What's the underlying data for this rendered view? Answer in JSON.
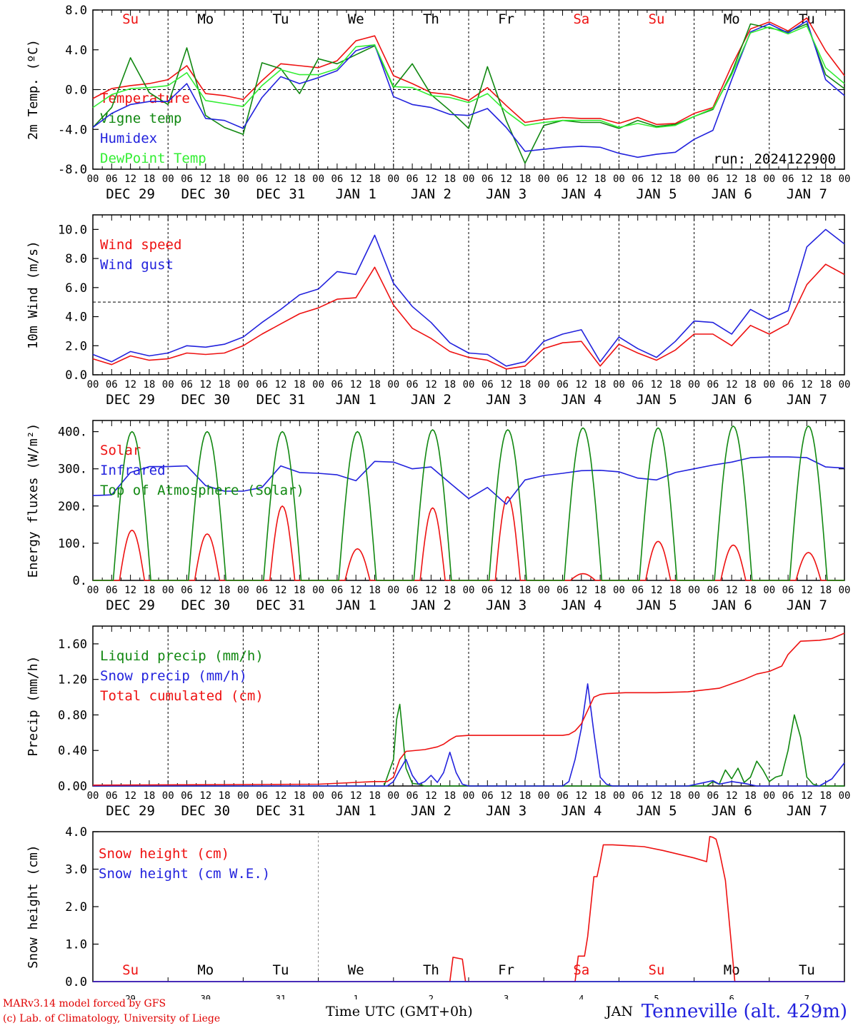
{
  "run_label": "run: 2024122900",
  "footer": {
    "credit_line1": "MARv3.14 model forced by GFS",
    "credit_line2": "(c) Lab. of Climatology, University of Liege",
    "time_axis_label": "Time UTC (GMT+0h)",
    "month_label": "JAN",
    "station": "Tenneville (alt. 429m)"
  },
  "colors": {
    "red": "#ee1111",
    "darkgreen": "#118811",
    "blue": "#2222dd",
    "lightgreen": "#33ee33",
    "weekend": "#ee1111",
    "weekday": "#000000"
  },
  "hour_ticks": [
    "00",
    "06",
    "12",
    "18"
  ],
  "day_labels": [
    "DEC 29",
    "DEC 30",
    "DEC 31",
    "JAN  1",
    "JAN  2",
    "JAN  3",
    "JAN  4",
    "JAN  5",
    "JAN  6",
    "JAN  7"
  ],
  "weekdays": [
    {
      "label": "Su",
      "weekend": true
    },
    {
      "label": "Mo",
      "weekend": false
    },
    {
      "label": "Tu",
      "weekend": false
    },
    {
      "label": "We",
      "weekend": false
    },
    {
      "label": "Th",
      "weekend": false
    },
    {
      "label": "Fr",
      "weekend": false
    },
    {
      "label": "Sa",
      "weekend": true
    },
    {
      "label": "Su",
      "weekend": true
    },
    {
      "label": "Mo",
      "weekend": false
    },
    {
      "label": "Tu",
      "weekend": false
    }
  ],
  "snow_day_numbers": [
    "29",
    "30",
    "31",
    "1",
    "2",
    "3",
    "4",
    "5",
    "6",
    "7"
  ],
  "chart_data": [
    {
      "type": "line",
      "ylabel": "2m Temp. (ºC)",
      "ylim": [
        -8,
        8
      ],
      "yticks": [
        "-8.0",
        "-4.0",
        "0.0",
        "4.0",
        "8.0"
      ],
      "ref_line": 0,
      "x_range_hours": [
        0,
        240
      ],
      "series": [
        {
          "name": "Temperature",
          "color": "red",
          "x": [
            0,
            6,
            12,
            18,
            24,
            30,
            36,
            42,
            48,
            54,
            60,
            66,
            72,
            78,
            84,
            90,
            96,
            102,
            108,
            114,
            120,
            126,
            132,
            138,
            144,
            150,
            156,
            162,
            168,
            174,
            180,
            186,
            192,
            198,
            204,
            210,
            216,
            222,
            228,
            234,
            240
          ],
          "y": [
            -0.9,
            0.1,
            0.4,
            0.6,
            1.0,
            2.4,
            -0.4,
            -0.6,
            -1.0,
            0.9,
            2.6,
            2.4,
            2.2,
            2.9,
            4.9,
            5.4,
            1.4,
            0.6,
            -0.3,
            -0.5,
            -1.1,
            0.2,
            -1.6,
            -3.3,
            -3.0,
            -2.8,
            -2.9,
            -2.9,
            -3.4,
            -2.8,
            -3.5,
            -3.4,
            -2.4,
            -1.8,
            2.4,
            6.1,
            6.8,
            5.9,
            7.2,
            3.9,
            1.4
          ]
        },
        {
          "name": "Vigne temp",
          "color": "darkgreen",
          "x": [
            0,
            6,
            12,
            18,
            24,
            30,
            36,
            42,
            48,
            54,
            60,
            66,
            72,
            78,
            84,
            90,
            96,
            102,
            108,
            114,
            120,
            126,
            132,
            138,
            144,
            150,
            156,
            162,
            168,
            174,
            180,
            186,
            192,
            198,
            204,
            210,
            216,
            222,
            228,
            234,
            240
          ],
          "y": [
            -3.8,
            -1.8,
            3.2,
            -0.3,
            -1.5,
            4.2,
            -2.6,
            -3.8,
            -4.5,
            2.7,
            2.1,
            -0.4,
            3.1,
            2.6,
            3.5,
            4.4,
            0.2,
            2.6,
            -0.5,
            -2.1,
            -3.9,
            2.3,
            -3.1,
            -7.4,
            -3.6,
            -3.1,
            -3.3,
            -3.3,
            -3.9,
            -3.1,
            -3.7,
            -3.5,
            -2.7,
            -2.0,
            1.7,
            6.6,
            6.2,
            5.8,
            6.6,
            1.5,
            0.1
          ]
        },
        {
          "name": "Humidex",
          "color": "blue",
          "x": [
            0,
            6,
            12,
            18,
            24,
            30,
            36,
            42,
            48,
            54,
            60,
            66,
            72,
            78,
            84,
            90,
            96,
            102,
            108,
            114,
            120,
            126,
            132,
            138,
            144,
            150,
            156,
            162,
            168,
            174,
            180,
            186,
            192,
            198,
            204,
            210,
            216,
            222,
            228,
            234,
            240
          ],
          "y": [
            -3.8,
            -2.4,
            -1.5,
            -1.2,
            -1.2,
            0.6,
            -2.9,
            -3.1,
            -3.9,
            -0.8,
            1.3,
            0.6,
            1.2,
            1.9,
            3.9,
            4.5,
            -0.7,
            -1.5,
            -1.8,
            -2.5,
            -2.6,
            -1.9,
            -3.8,
            -6.2,
            -6.0,
            -5.8,
            -5.7,
            -5.8,
            -6.4,
            -6.8,
            -6.5,
            -6.3,
            -5.0,
            -4.1,
            1.0,
            5.8,
            6.6,
            5.7,
            6.9,
            1.0,
            -0.6
          ]
        },
        {
          "name": "DewPoint Temp",
          "color": "lightgreen",
          "x": [
            0,
            6,
            12,
            18,
            24,
            30,
            36,
            42,
            48,
            54,
            60,
            66,
            72,
            78,
            84,
            90,
            96,
            102,
            108,
            114,
            120,
            126,
            132,
            138,
            144,
            150,
            156,
            162,
            168,
            174,
            180,
            186,
            192,
            198,
            204,
            210,
            216,
            222,
            228,
            234,
            240
          ],
          "y": [
            -1.8,
            -0.5,
            0.1,
            0.2,
            0.4,
            1.7,
            -1.1,
            -1.4,
            -1.7,
            0.4,
            2.0,
            1.5,
            1.5,
            2.1,
            4.3,
            4.5,
            0.3,
            0.2,
            -0.6,
            -0.8,
            -1.3,
            -0.4,
            -2.2,
            -3.6,
            -3.3,
            -3.1,
            -3.1,
            -3.1,
            -3.8,
            -3.4,
            -3.8,
            -3.6,
            -2.7,
            -1.9,
            1.5,
            5.7,
            6.3,
            5.6,
            6.4,
            2.2,
            0.6
          ]
        }
      ]
    },
    {
      "type": "line",
      "ylabel": "10m Wind (m/s)",
      "ylim": [
        0,
        11
      ],
      "yticks": [
        "0.0",
        "2.0",
        "4.0",
        "6.0",
        "8.0",
        "10.0"
      ],
      "ref_line": 5,
      "x_range_hours": [
        0,
        240
      ],
      "series": [
        {
          "name": "Wind speed",
          "color": "red",
          "x": [
            0,
            6,
            12,
            18,
            24,
            30,
            36,
            42,
            48,
            54,
            60,
            66,
            72,
            78,
            84,
            90,
            96,
            102,
            108,
            114,
            120,
            126,
            132,
            138,
            144,
            150,
            156,
            162,
            168,
            174,
            180,
            186,
            192,
            198,
            204,
            210,
            216,
            222,
            228,
            234,
            240
          ],
          "y": [
            1.1,
            0.7,
            1.3,
            1.0,
            1.1,
            1.5,
            1.4,
            1.5,
            2.0,
            2.8,
            3.5,
            4.2,
            4.6,
            5.2,
            5.3,
            7.4,
            4.8,
            3.2,
            2.5,
            1.6,
            1.2,
            1.0,
            0.4,
            0.6,
            1.8,
            2.2,
            2.3,
            0.6,
            2.1,
            1.5,
            1.0,
            1.7,
            2.8,
            2.8,
            2.0,
            3.4,
            2.8,
            3.5,
            6.2,
            7.6,
            6.9
          ]
        },
        {
          "name": "Wind gust",
          "color": "blue",
          "x": [
            0,
            6,
            12,
            18,
            24,
            30,
            36,
            42,
            48,
            54,
            60,
            66,
            72,
            78,
            84,
            90,
            96,
            102,
            108,
            114,
            120,
            126,
            132,
            138,
            144,
            150,
            156,
            162,
            168,
            174,
            180,
            186,
            192,
            198,
            204,
            210,
            216,
            222,
            228,
            234,
            240
          ],
          "y": [
            1.4,
            0.9,
            1.6,
            1.3,
            1.5,
            2.0,
            1.9,
            2.1,
            2.6,
            3.6,
            4.5,
            5.5,
            5.9,
            7.1,
            6.9,
            9.6,
            6.3,
            4.7,
            3.6,
            2.2,
            1.5,
            1.4,
            0.6,
            0.9,
            2.3,
            2.8,
            3.1,
            0.9,
            2.6,
            1.8,
            1.2,
            2.3,
            3.7,
            3.6,
            2.8,
            4.5,
            3.8,
            4.4,
            8.8,
            10.0,
            9.0
          ]
        }
      ]
    },
    {
      "type": "line",
      "ylabel": "Energy fluxes (W/m²)",
      "ylim": [
        0,
        430
      ],
      "yticks": [
        "0.",
        "100.",
        "200.",
        "300.",
        "400."
      ],
      "x_range_hours": [
        0,
        240
      ],
      "series": [
        {
          "name": "Solar",
          "color": "red",
          "diurnal_peaks": [
            135,
            125,
            200,
            85,
            195,
            225,
            18,
            105,
            95,
            75
          ]
        },
        {
          "name": "Infrared",
          "color": "blue",
          "x": [
            0,
            6,
            12,
            18,
            24,
            30,
            36,
            42,
            48,
            54,
            60,
            66,
            72,
            78,
            84,
            90,
            96,
            102,
            108,
            114,
            120,
            126,
            132,
            138,
            144,
            150,
            156,
            162,
            168,
            174,
            180,
            186,
            192,
            198,
            204,
            210,
            216,
            222,
            228,
            234,
            240
          ],
          "y": [
            228,
            230,
            290,
            306,
            306,
            308,
            255,
            240,
            240,
            250,
            308,
            290,
            288,
            284,
            268,
            320,
            318,
            300,
            305,
            262,
            220,
            250,
            205,
            270,
            282,
            288,
            295,
            296,
            292,
            275,
            270,
            290,
            300,
            310,
            318,
            330,
            332,
            332,
            330,
            305,
            302
          ]
        },
        {
          "name": "Top of Atmosphere (Solar)",
          "color": "darkgreen",
          "diurnal_peaks": [
            400,
            400,
            400,
            400,
            405,
            405,
            410,
            410,
            415,
            415
          ]
        }
      ]
    },
    {
      "type": "line",
      "ylabel": "Precip (mm/h)",
      "ylim": [
        0,
        1.8
      ],
      "yticks": [
        "0.00",
        "0.40",
        "0.80",
        "1.20",
        "1.60"
      ],
      "x_range_hours": [
        0,
        240
      ],
      "series": [
        {
          "name": "Liquid precip (mm/h)",
          "color": "darkgreen",
          "x": [
            0,
            93,
            96,
            97,
            98,
            100,
            102,
            104,
            106,
            108,
            110,
            112,
            114,
            116,
            118,
            120,
            160,
            190,
            196,
            198,
            200,
            202,
            204,
            206,
            208,
            210,
            212,
            214,
            216,
            218,
            220,
            222,
            224,
            226,
            228,
            230,
            232,
            234,
            240
          ],
          "y": [
            0,
            0,
            0.3,
            0.75,
            0.92,
            0.2,
            0.03,
            0.02,
            0,
            0,
            0,
            0,
            0,
            0,
            0,
            0,
            0,
            0,
            0,
            0.05,
            0.02,
            0.18,
            0.08,
            0.2,
            0.04,
            0.1,
            0.28,
            0.18,
            0.05,
            0.1,
            0.12,
            0.4,
            0.8,
            0.55,
            0.1,
            0.02,
            0,
            0,
            0
          ]
        },
        {
          "name": "Snow precip (mm/h)",
          "color": "blue",
          "x": [
            0,
            94,
            96,
            98,
            100,
            102,
            104,
            106,
            108,
            110,
            112,
            114,
            116,
            118,
            120,
            150,
            152,
            154,
            156,
            158,
            160,
            162,
            164,
            166,
            168,
            190,
            194,
            198,
            200,
            204,
            208,
            212,
            232,
            236,
            240
          ],
          "y": [
            0,
            0,
            0.05,
            0.18,
            0.3,
            0.12,
            0.02,
            0.05,
            0.12,
            0.04,
            0.15,
            0.38,
            0.15,
            0.02,
            0,
            0,
            0.05,
            0.3,
            0.65,
            1.15,
            0.6,
            0.1,
            0.02,
            0,
            0,
            0,
            0.03,
            0.06,
            0.02,
            0.05,
            0.03,
            0,
            0,
            0.08,
            0.26
          ]
        },
        {
          "name": "Total cumulated (cm)",
          "color": "red",
          "x": [
            0,
            72,
            84,
            90,
            94,
            96,
            98,
            100,
            106,
            110,
            112,
            114,
            116,
            120,
            150,
            152,
            154,
            156,
            158,
            160,
            162,
            164,
            170,
            180,
            190,
            200,
            204,
            208,
            212,
            216,
            220,
            222,
            226,
            232,
            236,
            240
          ],
          "y": [
            0.01,
            0.02,
            0.04,
            0.05,
            0.05,
            0.1,
            0.3,
            0.39,
            0.41,
            0.44,
            0.47,
            0.52,
            0.56,
            0.57,
            0.57,
            0.58,
            0.62,
            0.7,
            0.85,
            1.0,
            1.03,
            1.04,
            1.05,
            1.05,
            1.06,
            1.1,
            1.15,
            1.2,
            1.26,
            1.29,
            1.35,
            1.48,
            1.63,
            1.64,
            1.66,
            1.72
          ]
        }
      ]
    },
    {
      "type": "line",
      "ylabel": "Snow height (cm)",
      "ylim": [
        0,
        4
      ],
      "yticks": [
        "0.0",
        "1.0",
        "2.0",
        "3.0",
        "4.0"
      ],
      "x_range_hours": [
        0,
        240
      ],
      "series": [
        {
          "name": "Snow height (cm)",
          "color": "red",
          "x": [
            0,
            114,
            115,
            118,
            119,
            154,
            155,
            157,
            158,
            160,
            161,
            162,
            163,
            164,
            166,
            170,
            176,
            182,
            192,
            196,
            197,
            198,
            199,
            200,
            202,
            204,
            205,
            206,
            207,
            240
          ],
          "y": [
            0,
            0,
            0.65,
            0.6,
            0,
            0,
            0.68,
            0.68,
            1.2,
            2.8,
            2.8,
            3.2,
            3.65,
            3.65,
            3.65,
            3.63,
            3.6,
            3.5,
            3.3,
            3.2,
            3.87,
            3.85,
            3.8,
            3.5,
            2.7,
            0.9,
            0,
            0,
            0,
            0
          ]
        },
        {
          "name": "Snow height (cm W.E.)",
          "color": "blue",
          "x": [
            0,
            240
          ],
          "y": [
            0,
            0
          ]
        }
      ]
    }
  ]
}
